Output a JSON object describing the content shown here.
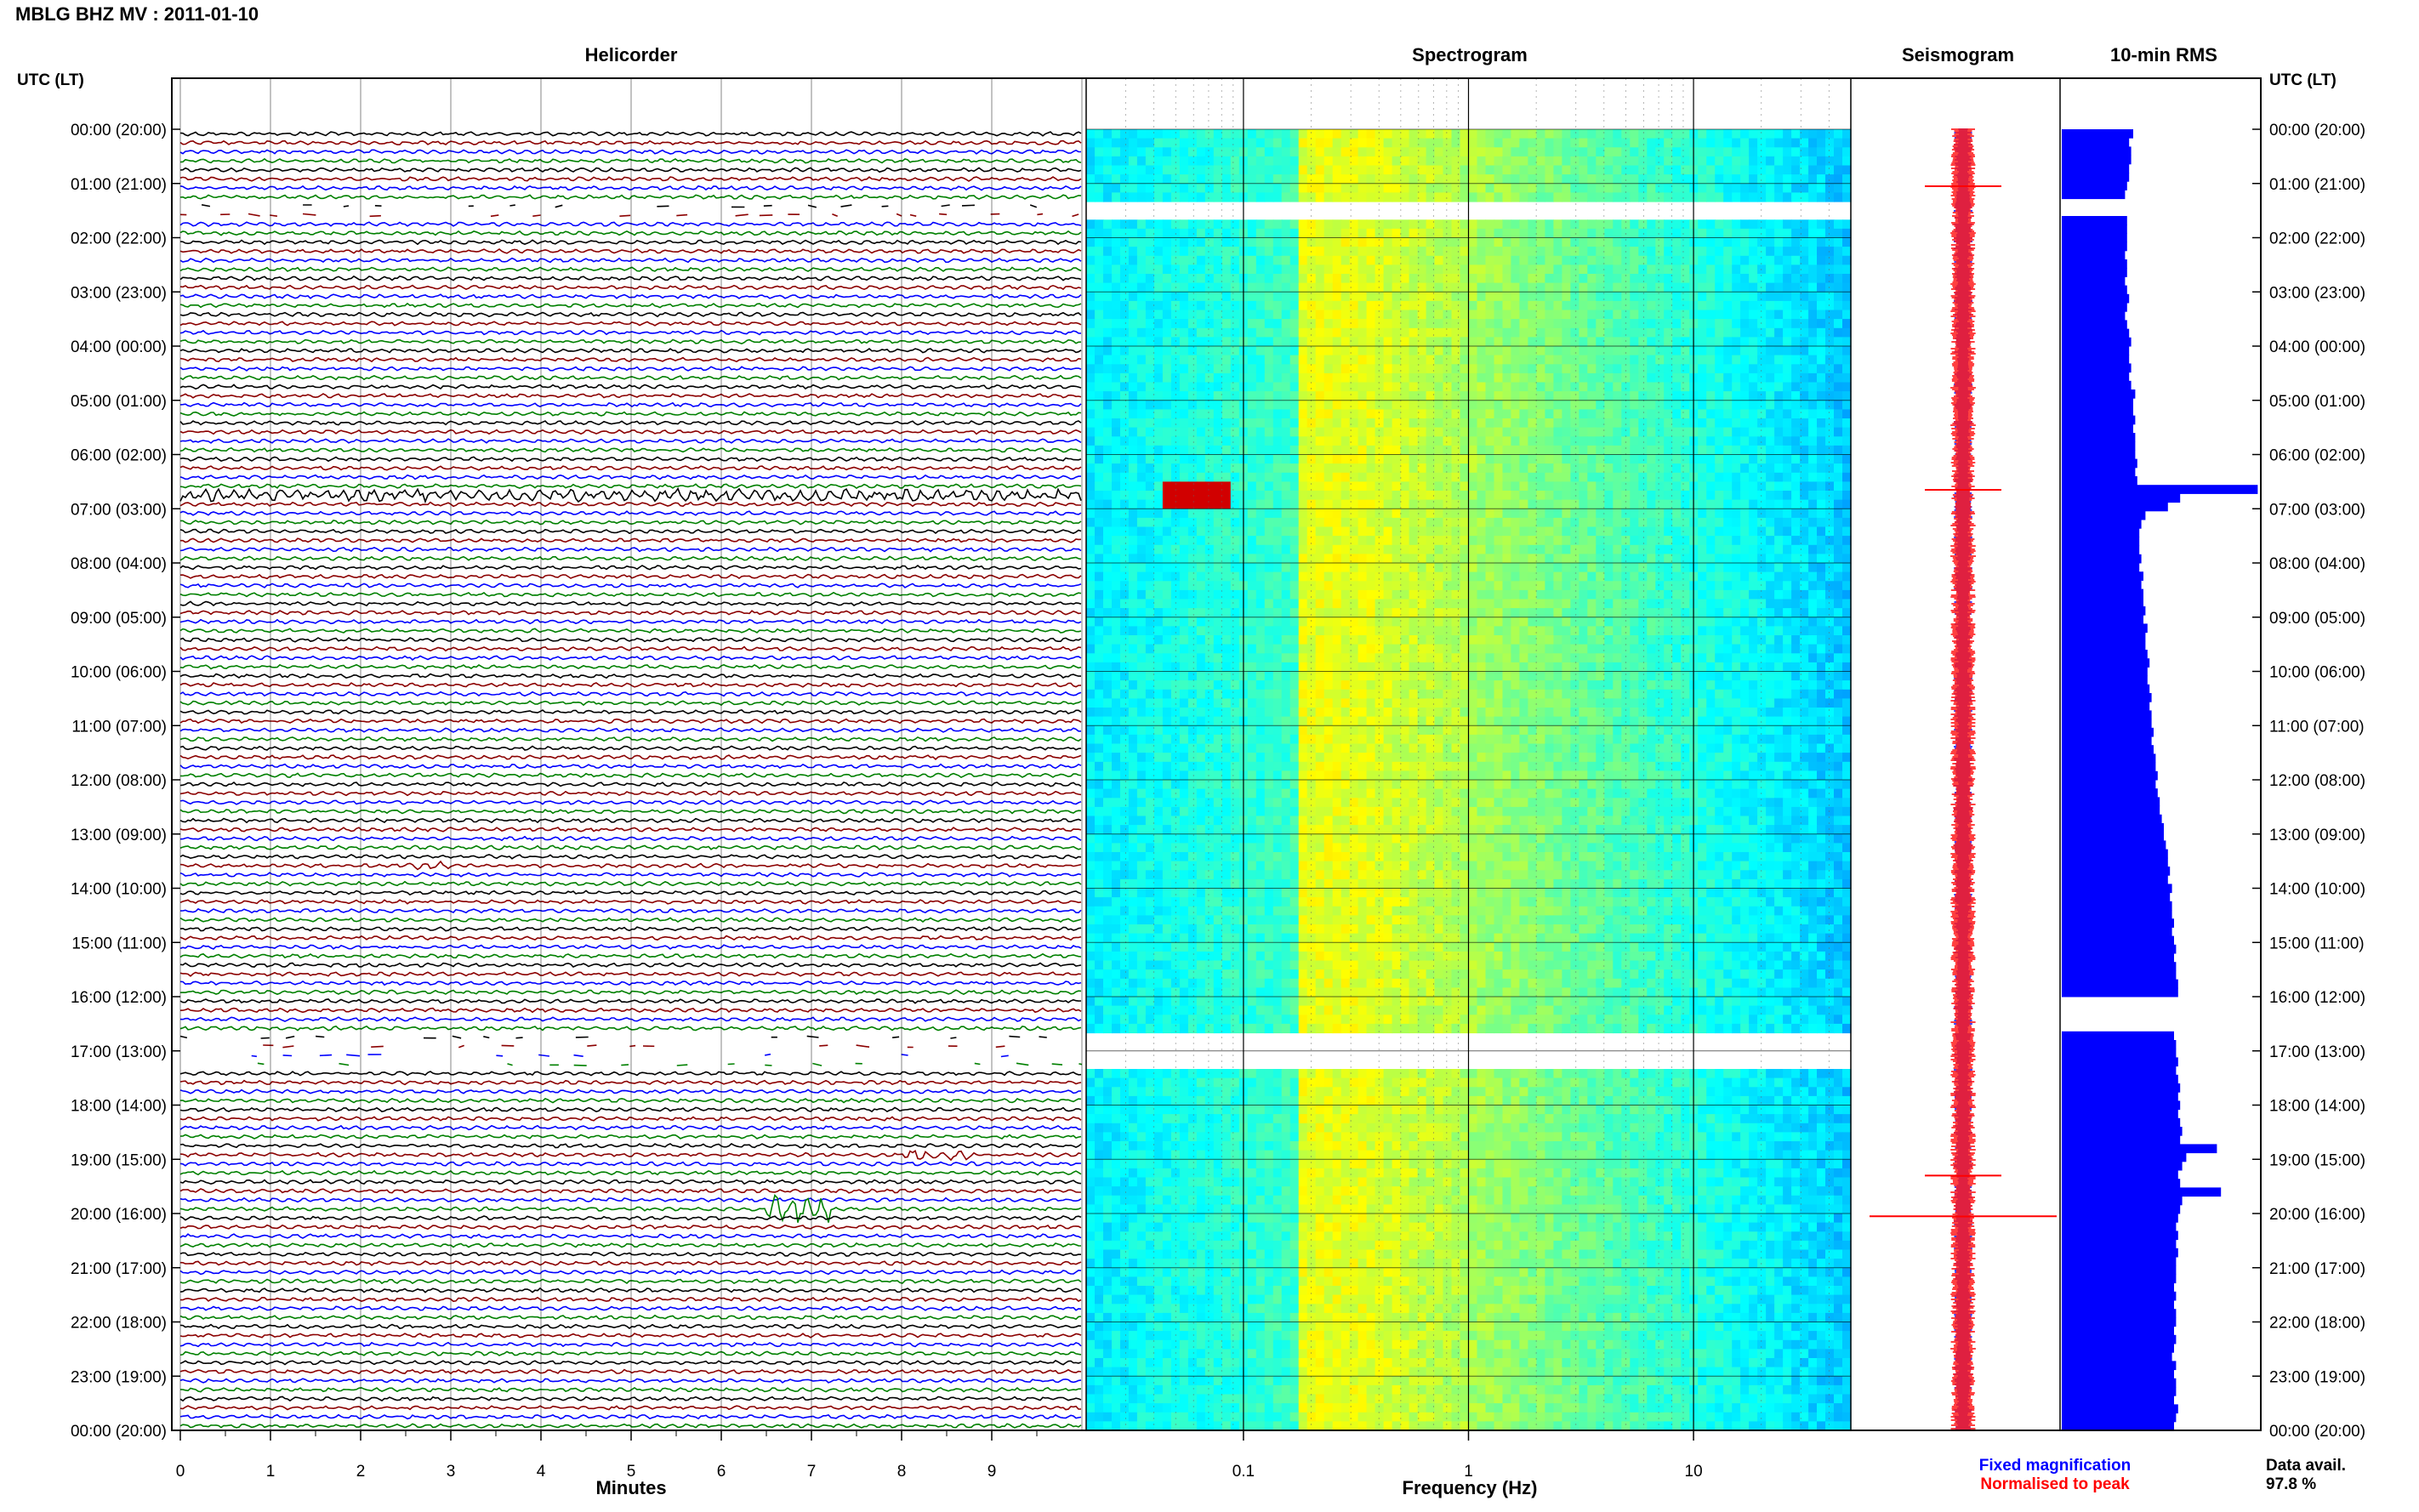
{
  "page": {
    "title": "MBLG BHZ MV : 2011-01-10",
    "time_axis_label": "UTC (LT)",
    "legend_fixed": "Fixed magnification",
    "legend_normalised": "Normalised to peak",
    "data_avail_label": "Data avail.",
    "data_avail_value": "97.8 %"
  },
  "colors": {
    "trace_cycle": [
      "#000000",
      "#8b0000",
      "#0000ff",
      "#008000"
    ],
    "rms_bar": "#0000ff",
    "seis_fixed": "#0000ff",
    "seis_norm": "#ff0000"
  },
  "chart_data": [
    {
      "type": "line",
      "title": "Helicorder",
      "xlabel": "Minutes",
      "x_ticks": [
        "0",
        "1",
        "2",
        "3",
        "4",
        "5",
        "6",
        "7",
        "8",
        "9"
      ],
      "xlim": [
        0,
        10
      ],
      "row_labels": [
        "00:00 (20:00)",
        "01:00 (21:00)",
        "02:00 (22:00)",
        "03:00 (23:00)",
        "04:00 (00:00)",
        "05:00 (01:00)",
        "06:00 (02:00)",
        "07:00 (03:00)",
        "08:00 (04:00)",
        "09:00 (05:00)",
        "10:00 (06:00)",
        "11:00 (07:00)",
        "12:00 (08:00)",
        "13:00 (09:00)",
        "14:00 (10:00)",
        "15:00 (11:00)",
        "16:00 (12:00)",
        "17:00 (13:00)",
        "18:00 (14:00)",
        "19:00 (15:00)",
        "20:00 (16:00)",
        "21:00 (17:00)",
        "22:00 (18:00)",
        "23:00 (19:00)",
        "00:00 (20:00)"
      ],
      "rows_per_hour": 6,
      "gaps_hours": [
        [
          1.3,
          1.6
        ],
        [
          16.6,
          17.3
        ]
      ],
      "events": [
        {
          "hour": 6.6,
          "minute_start": 0,
          "minute_end": 10,
          "amplitude": "moderate"
        },
        {
          "hour": 13.5,
          "minute_start": 2.5,
          "minute_end": 3.0,
          "amplitude": "small"
        },
        {
          "hour": 18.9,
          "minute_start": 8.0,
          "minute_end": 8.8,
          "amplitude": "moderate"
        },
        {
          "hour": 19.9,
          "minute_start": 6.5,
          "minute_end": 7.2,
          "amplitude": "large"
        }
      ]
    },
    {
      "type": "heatmap",
      "title": "Spectrogram",
      "xlabel": "Frequency (Hz)",
      "x_scale": "log",
      "xlim": [
        0.02,
        50
      ],
      "x_ticks": [
        "0.1",
        "1",
        "10"
      ],
      "colormap": "jet",
      "dominant_band_hz": [
        0.18,
        0.35
      ],
      "gaps_hours": [
        [
          1.3,
          1.6
        ],
        [
          16.6,
          17.3
        ]
      ],
      "features": [
        {
          "hour": 6.65,
          "freq_hz": [
            0.045,
            0.09
          ],
          "level": "peak"
        }
      ]
    },
    {
      "type": "line",
      "title": "Seismogram",
      "series": [
        {
          "name": "Fixed magnification",
          "color": "#0000ff"
        },
        {
          "name": "Normalised to peak",
          "color": "#ff0000"
        }
      ],
      "spikes_hours": [
        1.05,
        6.65,
        19.3,
        20.05
      ]
    },
    {
      "type": "bar",
      "title": "10-min RMS",
      "orientation": "horizontal",
      "bins_per_hour": 6,
      "xlim": [
        0,
        100
      ],
      "values": [
        35,
        33,
        34,
        34,
        33,
        33,
        32,
        31,
        0,
        0,
        32,
        32,
        32,
        32,
        31,
        32,
        32,
        31,
        32,
        33,
        32,
        31,
        32,
        33,
        34,
        33,
        33,
        34,
        33,
        34,
        36,
        35,
        35,
        36,
        35,
        36,
        36,
        36,
        37,
        36,
        37,
        96,
        58,
        52,
        41,
        39,
        38,
        38,
        38,
        39,
        38,
        40,
        39,
        40,
        40,
        41,
        40,
        42,
        41,
        41,
        42,
        43,
        42,
        42,
        43,
        44,
        43,
        44,
        44,
        45,
        44,
        45,
        46,
        46,
        47,
        46,
        47,
        48,
        48,
        49,
        50,
        50,
        51,
        52,
        52,
        53,
        52,
        54,
        53,
        54,
        54,
        55,
        54,
        55,
        56,
        55,
        56,
        56,
        57,
        57,
        0,
        0,
        0,
        0,
        55,
        56,
        56,
        57,
        56,
        57,
        58,
        57,
        58,
        57,
        58,
        59,
        58,
        76,
        61,
        59,
        57,
        58,
        78,
        59,
        58,
        57,
        56,
        57,
        56,
        57,
        56,
        56,
        56,
        55,
        56,
        55,
        56,
        56,
        55,
        56,
        55,
        54,
        56,
        55,
        56,
        56,
        55,
        57,
        56,
        55
      ]
    }
  ]
}
